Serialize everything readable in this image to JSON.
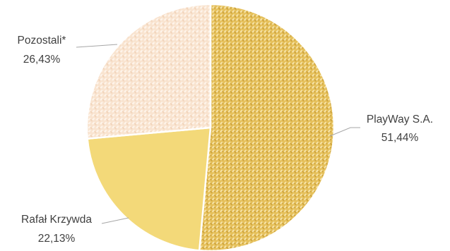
{
  "chart_data": {
    "type": "pie",
    "title": "",
    "slices": [
      {
        "label": "PlayWay S.A.",
        "value": 51.44,
        "value_label": "51,44%",
        "color": "#E8C25E",
        "pattern": "diagonal-weave"
      },
      {
        "label": "Rafał Krzywda",
        "value": 22.13,
        "value_label": "22,13%",
        "color": "#F3D979",
        "pattern": "none"
      },
      {
        "label": "Pozostali*",
        "value": 26.43,
        "value_label": "26,43%",
        "color": "#F9E3CF",
        "pattern": "diagonal-weave"
      }
    ],
    "start_angle": "12 o'clock",
    "direction": "clockwise",
    "legend": "none",
    "data_labels": "outside with leader lines"
  }
}
